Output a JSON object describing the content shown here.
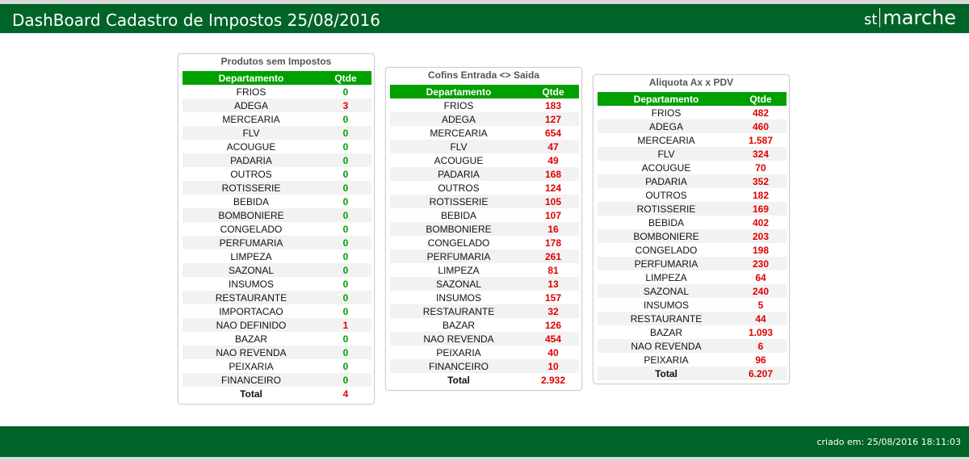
{
  "header": {
    "title": "DashBoard Cadastro de Impostos 25/08/2016",
    "logo_left": "st",
    "logo_right": "marche"
  },
  "footer": {
    "created": "criado em: 25/08/2016 18:11:03"
  },
  "colors": {
    "header_bg": "#006428",
    "table_header": "#00a000",
    "zero": "#00a000",
    "nonzero": "#e00000"
  },
  "panels": [
    {
      "title": "Produtos sem Impostos",
      "col_dept": "Departamento",
      "col_qty": "Qtde",
      "rows": [
        {
          "dept": "FRIOS",
          "qty": "0"
        },
        {
          "dept": "ADEGA",
          "qty": "3"
        },
        {
          "dept": "MERCEARIA",
          "qty": "0"
        },
        {
          "dept": "FLV",
          "qty": "0"
        },
        {
          "dept": "ACOUGUE",
          "qty": "0"
        },
        {
          "dept": "PADARIA",
          "qty": "0"
        },
        {
          "dept": "OUTROS",
          "qty": "0"
        },
        {
          "dept": "ROTISSERIE",
          "qty": "0"
        },
        {
          "dept": "BEBIDA",
          "qty": "0"
        },
        {
          "dept": "BOMBONIERE",
          "qty": "0"
        },
        {
          "dept": "CONGELADO",
          "qty": "0"
        },
        {
          "dept": "PERFUMARIA",
          "qty": "0"
        },
        {
          "dept": "LIMPEZA",
          "qty": "0"
        },
        {
          "dept": "SAZONAL",
          "qty": "0"
        },
        {
          "dept": "INSUMOS",
          "qty": "0"
        },
        {
          "dept": "RESTAURANTE",
          "qty": "0"
        },
        {
          "dept": "IMPORTACAO",
          "qty": "0"
        },
        {
          "dept": "NAO DEFINIDO",
          "qty": "1"
        },
        {
          "dept": "BAZAR",
          "qty": "0"
        },
        {
          "dept": "NAO REVENDA",
          "qty": "0"
        },
        {
          "dept": "PEIXARIA",
          "qty": "0"
        },
        {
          "dept": "FINANCEIRO",
          "qty": "0"
        }
      ],
      "total_label": "Total",
      "total": "4"
    },
    {
      "title": "Cofins Entrada <> Saida",
      "col_dept": "Departamento",
      "col_qty": "Qtde",
      "rows": [
        {
          "dept": "FRIOS",
          "qty": "183"
        },
        {
          "dept": "ADEGA",
          "qty": "127"
        },
        {
          "dept": "MERCEARIA",
          "qty": "654"
        },
        {
          "dept": "FLV",
          "qty": "47"
        },
        {
          "dept": "ACOUGUE",
          "qty": "49"
        },
        {
          "dept": "PADARIA",
          "qty": "168"
        },
        {
          "dept": "OUTROS",
          "qty": "124"
        },
        {
          "dept": "ROTISSERIE",
          "qty": "105"
        },
        {
          "dept": "BEBIDA",
          "qty": "107"
        },
        {
          "dept": "BOMBONIERE",
          "qty": "16"
        },
        {
          "dept": "CONGELADO",
          "qty": "178"
        },
        {
          "dept": "PERFUMARIA",
          "qty": "261"
        },
        {
          "dept": "LIMPEZA",
          "qty": "81"
        },
        {
          "dept": "SAZONAL",
          "qty": "13"
        },
        {
          "dept": "INSUMOS",
          "qty": "157"
        },
        {
          "dept": "RESTAURANTE",
          "qty": "32"
        },
        {
          "dept": "BAZAR",
          "qty": "126"
        },
        {
          "dept": "NAO REVENDA",
          "qty": "454"
        },
        {
          "dept": "PEIXARIA",
          "qty": "40"
        },
        {
          "dept": "FINANCEIRO",
          "qty": "10"
        }
      ],
      "total_label": "Total",
      "total": "2.932"
    },
    {
      "title": "Aliquota Ax x PDV",
      "col_dept": "Departamento",
      "col_qty": "Qtde",
      "rows": [
        {
          "dept": "FRIOS",
          "qty": "482"
        },
        {
          "dept": "ADEGA",
          "qty": "460"
        },
        {
          "dept": "MERCEARIA",
          "qty": "1.587"
        },
        {
          "dept": "FLV",
          "qty": "324"
        },
        {
          "dept": "ACOUGUE",
          "qty": "70"
        },
        {
          "dept": "PADARIA",
          "qty": "352"
        },
        {
          "dept": "OUTROS",
          "qty": "182"
        },
        {
          "dept": "ROTISSERIE",
          "qty": "169"
        },
        {
          "dept": "BEBIDA",
          "qty": "402"
        },
        {
          "dept": "BOMBONIERE",
          "qty": "203"
        },
        {
          "dept": "CONGELADO",
          "qty": "198"
        },
        {
          "dept": "PERFUMARIA",
          "qty": "230"
        },
        {
          "dept": "LIMPEZA",
          "qty": "64"
        },
        {
          "dept": "SAZONAL",
          "qty": "240"
        },
        {
          "dept": "INSUMOS",
          "qty": "5"
        },
        {
          "dept": "RESTAURANTE",
          "qty": "44"
        },
        {
          "dept": "BAZAR",
          "qty": "1.093"
        },
        {
          "dept": "NAO REVENDA",
          "qty": "6"
        },
        {
          "dept": "PEIXARIA",
          "qty": "96"
        }
      ],
      "total_label": "Total",
      "total": "6.207"
    }
  ]
}
